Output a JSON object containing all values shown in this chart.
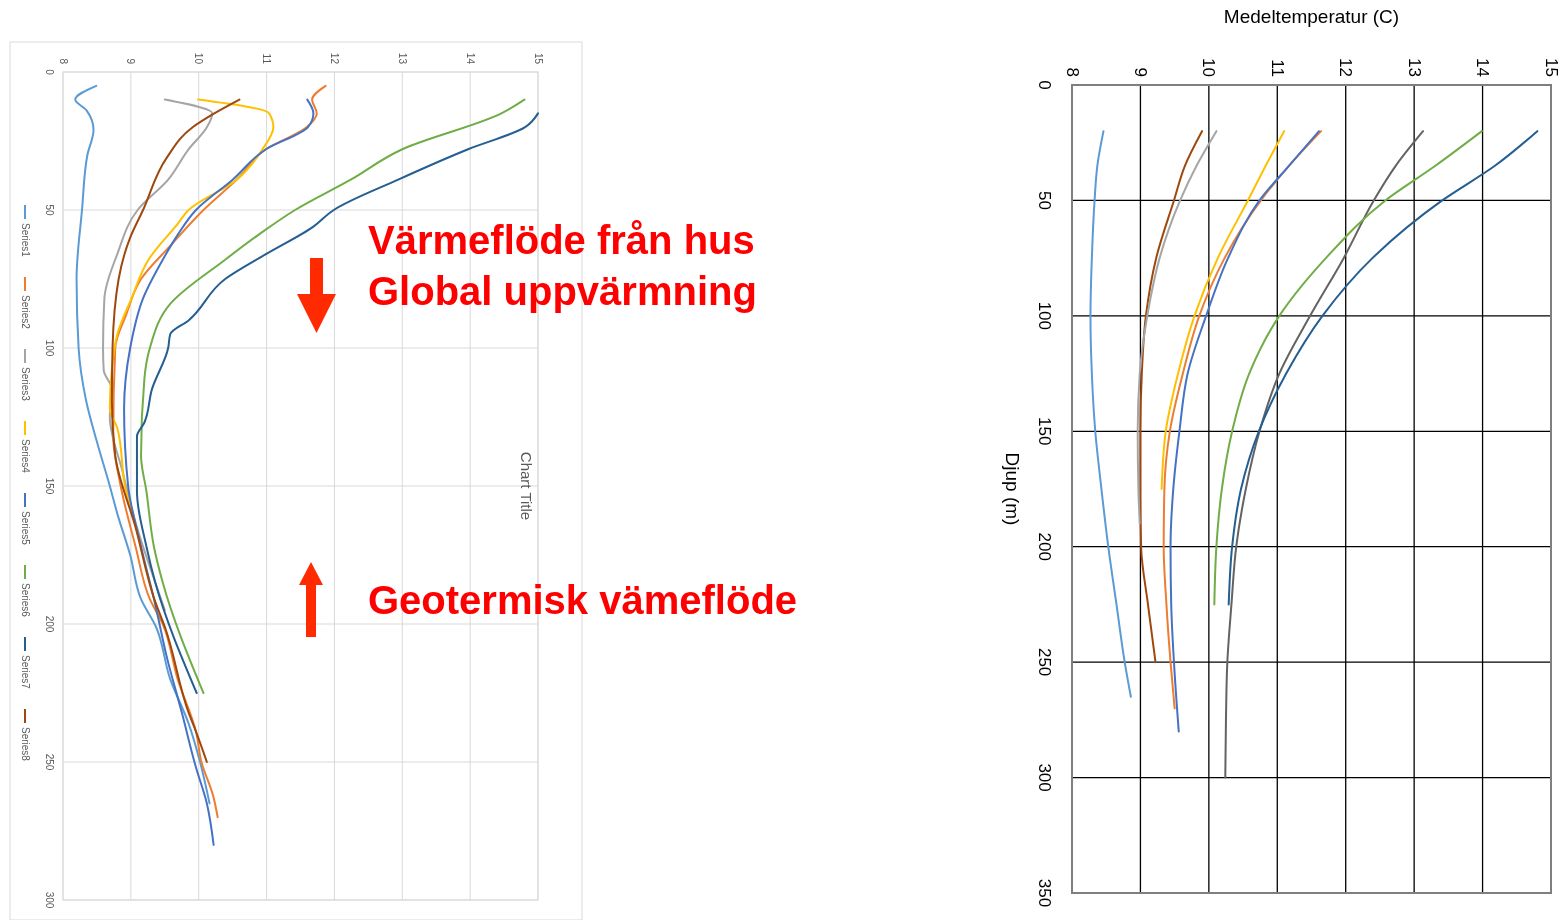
{
  "chart_data": [
    {
      "type": "line",
      "title": "Chart Title",
      "xlim": [
        8,
        15
      ],
      "xticks": [
        8,
        9,
        10,
        11,
        12,
        13,
        14,
        15
      ],
      "ylim": [
        300,
        0
      ],
      "yticks": [
        0,
        50,
        100,
        150,
        200,
        250,
        300
      ],
      "grid": true,
      "legend": "left",
      "annotations": [
        "Värmeflöde från hus",
        "Global uppvärmning",
        "Geotermisk vämeflöde"
      ],
      "series": [
        {
          "name": "Series1",
          "color": "#5b9bd5",
          "x": [
            8.49,
            8.18,
            8.35,
            8.45,
            8.36,
            8.28,
            8.2,
            8.23,
            8.34,
            8.5,
            8.69,
            8.8,
            8.99,
            9.15,
            9.37,
            9.58,
            9.85,
            10.02,
            10.16
          ],
          "values": [
            5,
            10,
            14,
            21,
            30,
            50,
            75,
            100,
            119,
            134,
            150,
            160,
            175,
            191,
            201,
            220,
            236,
            250,
            265
          ]
        },
        {
          "name": "Series2",
          "color": "#ed7d31",
          "x": [
            11.87,
            11.67,
            11.74,
            11.59,
            10.99,
            10.56,
            10.07,
            9.58,
            9.15,
            8.93,
            8.77,
            8.74,
            8.85,
            9.07,
            9.28,
            9.47,
            9.69,
            9.96,
            10.04,
            10.21,
            10.28
          ],
          "values": [
            5,
            10,
            15,
            20,
            28,
            39,
            50,
            63,
            75,
            88,
            100,
            132,
            150,
            172,
            191,
            200,
            220,
            239,
            250,
            262,
            270
          ]
        },
        {
          "name": "Series3",
          "color": "#a5a5a5",
          "x": [
            9.5,
            10.2,
            10.12,
            9.85,
            9.55,
            9.1,
            8.8,
            8.61,
            8.59,
            8.6,
            8.72,
            8.69,
            8.88,
            9.09,
            9.36,
            9.5
          ],
          "values": [
            10,
            15,
            20,
            28,
            39,
            50,
            66,
            82,
            100,
            108,
            115,
            125,
            145,
            165,
            185,
            195
          ]
        },
        {
          "name": "Series4",
          "color": "#ffc000",
          "x": [
            9.99,
            11.04,
            11.1,
            10.94,
            10.56,
            9.85,
            9.69,
            9.26,
            9.01,
            8.8,
            8.72,
            8.69,
            8.8,
            8.93,
            9.01
          ],
          "values": [
            10,
            15,
            20,
            28,
            39,
            50,
            55,
            68,
            82,
            95,
            108,
            122,
            129,
            152,
            159
          ]
        },
        {
          "name": "Series5",
          "color": "#4472c4",
          "x": [
            11.6,
            11.69,
            11.61,
            10.99,
            10.5,
            9.96,
            9.69,
            9.47,
            9.18,
            8.99,
            8.9,
            8.96,
            9.15,
            9.36,
            9.53,
            9.75,
            9.96,
            10.12,
            10.22
          ],
          "values": [
            10,
            15,
            20,
            28,
            39,
            50,
            59,
            68,
            82,
            100,
            122,
            150,
            172,
            193,
            212,
            232,
            252,
            265,
            280
          ]
        },
        {
          "name": "Series6",
          "color": "#70ad47",
          "x": [
            14.8,
            14.46,
            13.0,
            12.24,
            11.42,
            10.88,
            10.39,
            9.58,
            9.28,
            9.2,
            9.15,
            9.23,
            9.34,
            9.47,
            10.07
          ],
          "values": [
            10,
            15,
            28,
            39,
            50,
            59,
            68,
            84,
            100,
            111,
            139,
            152,
            172,
            185,
            225
          ]
        },
        {
          "name": "Series7",
          "color": "#255e91",
          "x": [
            15.0,
            14.81,
            13.97,
            12.94,
            11.99,
            11.69,
            10.99,
            10.39,
            9.85,
            9.58,
            9.55,
            9.31,
            9.2,
            9.09,
            9.09,
            9.23,
            9.36,
            9.97
          ],
          "values": [
            15,
            20,
            28,
            39,
            50,
            56,
            66,
            75,
            90,
            95,
            100,
            115,
            127,
            132,
            152,
            172,
            185,
            225
          ]
        },
        {
          "name": "Series8",
          "color": "#9e480e",
          "x": [
            10.6,
            10.23,
            9.91,
            9.53,
            9.18,
            8.99,
            8.82,
            8.73,
            8.72,
            8.77,
            9.07,
            9.36,
            9.5,
            9.85,
            9.96,
            10.12
          ],
          "values": [
            10,
            15,
            20,
            31,
            50,
            60,
            75,
            100,
            119,
            139,
            165,
            192,
            201,
            232,
            239,
            250
          ]
        }
      ]
    },
    {
      "type": "line",
      "xlabel": "Medeltemperatur (C)",
      "ylabel": "Djup (m)",
      "xlim": [
        8,
        15
      ],
      "xticks": [
        8,
        9,
        10,
        11,
        12,
        13,
        14,
        15
      ],
      "ylim": [
        350,
        0
      ],
      "yticks": [
        0,
        50,
        100,
        150,
        200,
        250,
        300,
        350
      ],
      "grid": true,
      "series": [
        {
          "color": "#5b9bd5",
          "x": [
            8.46,
            8.37,
            8.33,
            8.29,
            8.27,
            8.29,
            8.34,
            8.43,
            8.53,
            8.65,
            8.77,
            8.86
          ],
          "values": [
            20,
            35,
            50,
            75,
            100,
            125,
            150,
            175,
            200,
            225,
            250,
            265
          ]
        },
        {
          "color": "#9e480e",
          "x": [
            9.9,
            9.65,
            9.49,
            9.23,
            9.08,
            9.02,
            9.0,
            9.0,
            9.01,
            9.11,
            9.22
          ],
          "values": [
            20,
            35,
            50,
            75,
            100,
            125,
            150,
            175,
            200,
            225,
            250
          ]
        },
        {
          "color": "#a5a5a5",
          "x": [
            10.11,
            9.82,
            9.58,
            9.28,
            9.1,
            8.99,
            8.96,
            8.97,
            8.99
          ],
          "values": [
            20,
            35,
            50,
            75,
            100,
            125,
            150,
            175,
            190
          ]
        },
        {
          "color": "#ffc000",
          "x": [
            11.1,
            10.83,
            10.57,
            10.13,
            9.79,
            9.55,
            9.37,
            9.31
          ],
          "values": [
            20,
            35,
            50,
            75,
            100,
            125,
            150,
            175
          ]
        },
        {
          "color": "#ed7d31",
          "x": [
            11.64,
            11.17,
            10.76,
            10.23,
            9.86,
            9.62,
            9.43,
            9.35,
            9.34,
            9.38,
            9.44,
            9.5
          ],
          "values": [
            20,
            35,
            50,
            75,
            100,
            125,
            150,
            175,
            200,
            225,
            250,
            270
          ]
        },
        {
          "color": "#4472c4",
          "x": [
            11.61,
            11.17,
            10.74,
            10.28,
            9.96,
            9.69,
            9.57,
            9.48,
            9.44,
            9.45,
            9.49,
            9.56
          ],
          "values": [
            20,
            35,
            50,
            75,
            100,
            125,
            150,
            175,
            200,
            225,
            250,
            280
          ]
        },
        {
          "color": "#636363",
          "x": [
            13.13,
            12.73,
            12.41,
            11.97,
            11.48,
            11.03,
            10.74,
            10.54,
            10.4,
            10.33,
            10.27,
            10.25,
            10.24
          ],
          "values": [
            20,
            35,
            50,
            75,
            100,
            125,
            150,
            175,
            200,
            225,
            250,
            275,
            300
          ]
        },
        {
          "color": "#70ad47",
          "x": [
            13.99,
            13.31,
            12.58,
            11.71,
            11.03,
            10.59,
            10.34,
            10.19,
            10.11,
            10.08
          ],
          "values": [
            20,
            35,
            50,
            75,
            100,
            125,
            150,
            175,
            200,
            225
          ]
        },
        {
          "color": "#255e91",
          "x": [
            14.8,
            14.18,
            13.41,
            12.39,
            11.66,
            11.13,
            10.73,
            10.47,
            10.34,
            10.29
          ],
          "values": [
            20,
            35,
            50,
            75,
            100,
            125,
            150,
            175,
            200,
            225
          ]
        }
      ]
    }
  ]
}
